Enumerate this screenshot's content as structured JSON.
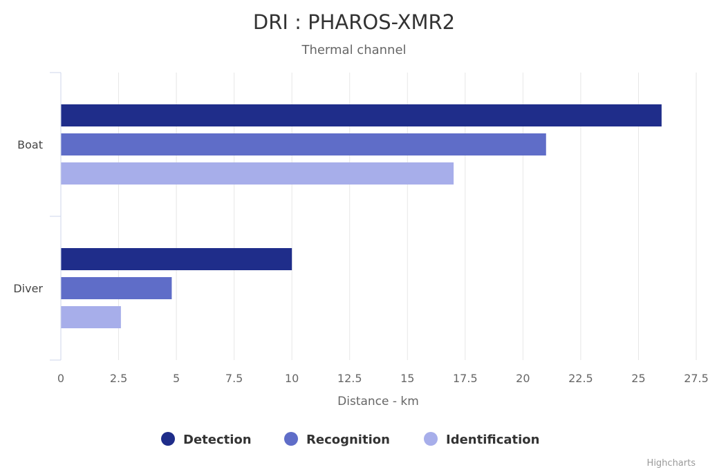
{
  "chart_data": {
    "type": "bar",
    "orientation": "horizontal",
    "title": "DRI : PHAROS-XMR2",
    "subtitle": "Thermal channel",
    "categories": [
      "Boat",
      "Diver"
    ],
    "series": [
      {
        "name": "Detection",
        "color": "#1f2d8a",
        "values": [
          26,
          10
        ]
      },
      {
        "name": "Recognition",
        "color": "#5f6dc8",
        "values": [
          21,
          4.8
        ]
      },
      {
        "name": "Identification",
        "color": "#a7aeea",
        "values": [
          17,
          2.6
        ]
      }
    ],
    "xlabel": "Distance - km",
    "ylabel": "",
    "xlim": [
      0,
      27.5
    ],
    "xticks": [
      "0",
      "2.5",
      "5",
      "7.5",
      "10",
      "12.5",
      "15",
      "17.5",
      "20",
      "22.5",
      "25",
      "27.5"
    ],
    "grid": true,
    "legend_position": "bottom-center"
  },
  "credits": "Highcharts"
}
